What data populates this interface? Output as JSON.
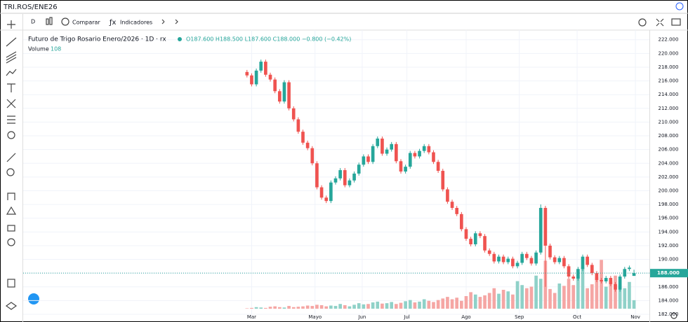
{
  "header": {
    "symbol": "TRI.ROS/ENE26"
  },
  "toolbar": {
    "interval": "D",
    "compare": "Comparar",
    "indicators": "Indicadores"
  },
  "chart_data": {
    "type": "candlestick",
    "title": "Futuro de Trigo Rosario Enero/2026 · 1D · rx",
    "ohlc_text": "O187.600 H188.500 L187.600 C188.000 −0.800 (−0.42%)",
    "volume_label": "Volume",
    "up_color": "#26a69a",
    "down_color": "#ef5350",
    "up_volume_color": "#8fd1c8",
    "down_volume_color": "#f5a6a4",
    "open": [
      217.3,
      216.8,
      215.5,
      217.5,
      218.8,
      216.9,
      216.2,
      214.5,
      213.0,
      215.8,
      212.0,
      210.4,
      208.6,
      207.0,
      206.2,
      204.0,
      200.5,
      199.0,
      198.5,
      201.2,
      201.8,
      203.0,
      200.8,
      201.5,
      202.5,
      203.8,
      205.0,
      204.2,
      206.5,
      207.6,
      205.4,
      206.0,
      206.8,
      204.3,
      202.8,
      203.5,
      205.5,
      205.0,
      205.8,
      206.5,
      205.6,
      204.2,
      202.9,
      200.2,
      198.4,
      197.5,
      196.6,
      194.4,
      193.0,
      192.2,
      193.8,
      193.4,
      191.3,
      190.8,
      189.7,
      190.4,
      189.6,
      190.1,
      189.0,
      189.5,
      190.8,
      190.2,
      189.4,
      191.0,
      197.5,
      192.0,
      190.3,
      189.6,
      190.2,
      189.0,
      187.5,
      187.2,
      188.6,
      190.4,
      189.2,
      188.0,
      187.0,
      186.8,
      187.3,
      186.4,
      185.6,
      187.5,
      188.6,
      187.6
    ],
    "high": [
      217.6,
      217.1,
      217.8,
      219.1,
      219.1,
      217.2,
      216.5,
      214.8,
      216.1,
      216.1,
      212.3,
      210.7,
      208.9,
      207.3,
      206.5,
      204.3,
      200.8,
      199.3,
      201.5,
      202.1,
      203.3,
      203.3,
      201.8,
      202.8,
      204.1,
      205.3,
      205.3,
      206.8,
      207.9,
      207.9,
      206.3,
      207.1,
      207.1,
      204.6,
      203.8,
      205.8,
      205.8,
      206.1,
      206.8,
      206.8,
      205.9,
      204.5,
      203.2,
      200.5,
      198.7,
      197.8,
      196.9,
      194.7,
      193.3,
      194.1,
      194.1,
      193.7,
      191.6,
      191.1,
      190.7,
      190.7,
      190.4,
      190.4,
      189.8,
      191.1,
      191.1,
      190.5,
      191.3,
      198.0,
      197.8,
      192.3,
      190.6,
      190.5,
      190.5,
      189.3,
      187.8,
      188.9,
      190.7,
      190.7,
      189.5,
      188.3,
      187.3,
      187.6,
      187.6,
      186.7,
      187.8,
      188.9,
      189.1,
      188.5
    ],
    "low": [
      216.5,
      215.2,
      215.2,
      217.2,
      216.6,
      215.9,
      214.2,
      212.7,
      212.7,
      211.7,
      210.1,
      208.3,
      206.7,
      205.9,
      203.7,
      200.2,
      198.7,
      198.2,
      198.2,
      200.9,
      201.5,
      200.5,
      200.5,
      201.2,
      202.2,
      203.5,
      203.9,
      203.9,
      206.2,
      205.1,
      205.1,
      205.7,
      204.0,
      202.5,
      202.5,
      203.2,
      204.7,
      204.7,
      205.5,
      205.3,
      203.9,
      202.6,
      199.9,
      198.1,
      197.2,
      196.3,
      194.1,
      192.7,
      191.9,
      191.9,
      193.1,
      191.0,
      190.5,
      189.4,
      189.4,
      189.3,
      189.3,
      188.7,
      188.7,
      189.2,
      189.9,
      189.1,
      189.1,
      190.7,
      186.0,
      190.0,
      189.3,
      189.3,
      188.7,
      187.2,
      186.9,
      186.9,
      188.3,
      188.9,
      187.7,
      186.7,
      186.5,
      186.5,
      186.1,
      185.3,
      185.3,
      187.2,
      188.3,
      187.6
    ],
    "close": [
      216.8,
      215.5,
      217.5,
      218.8,
      216.9,
      216.2,
      214.5,
      213.0,
      215.8,
      212.0,
      210.4,
      208.6,
      207.0,
      206.2,
      204.0,
      200.5,
      199.0,
      198.5,
      201.2,
      201.8,
      203.0,
      200.8,
      201.5,
      202.5,
      203.8,
      205.0,
      204.2,
      206.5,
      207.6,
      205.4,
      206.0,
      206.8,
      204.3,
      202.8,
      203.5,
      205.5,
      205.0,
      205.8,
      206.5,
      205.6,
      204.2,
      202.9,
      200.2,
      198.4,
      197.5,
      196.6,
      194.4,
      193.0,
      192.2,
      193.8,
      193.4,
      191.3,
      190.8,
      189.7,
      190.4,
      189.6,
      190.1,
      189.0,
      189.5,
      190.8,
      190.2,
      189.4,
      191.0,
      197.5,
      192.0,
      190.3,
      189.6,
      190.2,
      189.0,
      187.5,
      187.2,
      188.6,
      190.4,
      189.2,
      188.0,
      187.0,
      186.8,
      187.3,
      186.4,
      185.6,
      187.5,
      188.6,
      188.8,
      188.0
    ],
    "volume": [
      5,
      10,
      20,
      15,
      10,
      25,
      30,
      20,
      15,
      35,
      20,
      25,
      30,
      40,
      35,
      50,
      45,
      30,
      40,
      35,
      60,
      45,
      30,
      50,
      70,
      55,
      60,
      80,
      90,
      65,
      70,
      85,
      60,
      75,
      95,
      110,
      80,
      90,
      120,
      100,
      85,
      110,
      130,
      150,
      120,
      140,
      100,
      160,
      210,
      180,
      150,
      170,
      200,
      260,
      190,
      240,
      220,
      180,
      350,
      300,
      260,
      280,
      420,
      380,
      610,
      250,
      200,
      320,
      290,
      380,
      300,
      430,
      520,
      260,
      310,
      400,
      620,
      280,
      350,
      420,
      300,
      260,
      340,
      108
    ],
    "volume_lim": [
      0,
      800
    ],
    "xlim": [
      -48,
      86.3
    ],
    "xticks": [
      {
        "value": 1,
        "label": "Mar"
      },
      {
        "value": 14.6,
        "label": "Mayo"
      },
      {
        "value": 24.7,
        "label": "Jun"
      },
      {
        "value": 34.3,
        "label": "Jul"
      },
      {
        "value": 47,
        "label": "Ago"
      },
      {
        "value": 58.4,
        "label": "Sep"
      },
      {
        "value": 70.8,
        "label": "Oct"
      },
      {
        "value": 83.3,
        "label": "Nov"
      }
    ],
    "ylim": [
      181.9,
      223.4
    ],
    "yticks": [
      {
        "value": 182,
        "label": "182.000"
      },
      {
        "value": 184,
        "label": "184.000"
      },
      {
        "value": 186,
        "label": "186.000"
      },
      {
        "value": 188,
        "label": "188.000"
      },
      {
        "value": 190,
        "label": "190.000"
      },
      {
        "value": 192,
        "label": "192.000"
      },
      {
        "value": 194,
        "label": "194.000"
      },
      {
        "value": 196,
        "label": "196.000"
      },
      {
        "value": 198,
        "label": "198.000"
      },
      {
        "value": 200,
        "label": "200.000"
      },
      {
        "value": 202,
        "label": "202.000"
      },
      {
        "value": 204,
        "label": "204.000"
      },
      {
        "value": 206,
        "label": "206.000"
      },
      {
        "value": 208,
        "label": "208.000"
      },
      {
        "value": 210,
        "label": "210.000"
      },
      {
        "value": 212,
        "label": "212.000"
      },
      {
        "value": 214,
        "label": "214.000"
      },
      {
        "value": 216,
        "label": "216.000"
      },
      {
        "value": 218,
        "label": "218.000"
      },
      {
        "value": 220,
        "label": "220.000"
      },
      {
        "value": 222,
        "label": "222.000"
      }
    ],
    "grid": true,
    "last_price": {
      "value": 188,
      "label": "188.000"
    }
  }
}
